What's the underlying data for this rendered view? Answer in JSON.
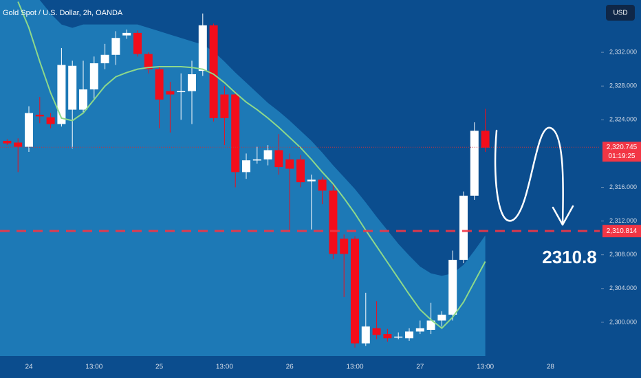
{
  "chart_data": {
    "type": "candlestick",
    "title": "Gold Spot / U.S. Dollar, 2h, OANDA",
    "currency_button": "USD",
    "categories": [
      null,
      null,
      "24",
      null,
      null,
      null,
      null,
      null,
      "13:00",
      null,
      null,
      null,
      null,
      null,
      "25",
      null,
      null,
      null,
      null,
      null,
      "13:00",
      null,
      null,
      null,
      null,
      null,
      "26",
      null,
      null,
      null,
      null,
      null,
      "13:00",
      null,
      null,
      null,
      null,
      null,
      "27",
      null,
      null,
      null,
      null,
      null,
      "13:00",
      null,
      null,
      null,
      null,
      null,
      "28"
    ],
    "open": [
      2321.5,
      2321.3,
      2320.8,
      2324.6,
      2324.3,
      2323.5,
      2325.2,
      2325.2,
      2327.6,
      2330.7,
      2331.7,
      2334.0,
      2334.3,
      2331.8,
      2330.0,
      2327.4,
      2327.3,
      2327.4,
      2329.8,
      2335.2,
      2327.0,
      2327.0,
      2317.8,
      2319.2,
      2319.3,
      2320.4,
      2319.3,
      2319.3,
      2316.7,
      2316.9,
      2315.6,
      2309.9,
      2309.9,
      2297.5,
      2299.3,
      2298.6,
      2298.2,
      2298.1,
      2298.9,
      2299.1,
      2300.2,
      2300.9,
      2307.4,
      2315.0,
      2322.7,
      null,
      null,
      null,
      null,
      null,
      null
    ],
    "high": [
      2321.7,
      2321.8,
      2325.6,
      2326.7,
      2324.8,
      2332.5,
      2331.0,
      2331.0,
      2331.5,
      2333.0,
      2334.5,
      2334.7,
      2334.6,
      2332.0,
      2330.4,
      2328.5,
      2329.5,
      2331.0,
      2336.6,
      2335.4,
      2328.0,
      2327.4,
      2320.0,
      2320.8,
      2321.0,
      2322.3,
      2320.0,
      2319.8,
      2317.5,
      2317.2,
      2316.4,
      2310.4,
      2310.2,
      2303.5,
      2302.5,
      2299.2,
      2298.8,
      2299.3,
      2300.2,
      2302.3,
      2301.3,
      2308.5,
      2315.5,
      2323.7,
      2325.3,
      null,
      null,
      null,
      null,
      null,
      null
    ],
    "low": [
      2321.0,
      2317.8,
      2320.2,
      2323.6,
      2323.0,
      2323.2,
      2320.6,
      2324.8,
      2326.5,
      2330.0,
      2330.5,
      2333.6,
      2331.5,
      2329.5,
      2323.0,
      2322.5,
      2324.0,
      2323.5,
      2329.2,
      2323.8,
      2321.0,
      2316.0,
      2317.0,
      2318.8,
      2318.6,
      2317.5,
      2310.7,
      2316.0,
      2311.0,
      2314.0,
      2307.5,
      2303.0,
      2297.0,
      2297.2,
      2298.0,
      2297.7,
      2298.0,
      2297.8,
      2298.6,
      2298.6,
      2299.5,
      2300.2,
      2307.0,
      2314.5,
      2320.2,
      null,
      null,
      null,
      null,
      null,
      null
    ],
    "close": [
      2321.2,
      2320.8,
      2324.8,
      2324.4,
      2323.5,
      2330.5,
      2330.4,
      2327.6,
      2330.7,
      2331.7,
      2333.7,
      2334.3,
      2331.8,
      2330.0,
      2326.4,
      2327.0,
      2327.4,
      2329.4,
      2335.2,
      2324.2,
      2324.2,
      2317.8,
      2319.2,
      2319.3,
      2320.4,
      2318.4,
      2318.2,
      2316.6,
      2316.9,
      2315.6,
      2308.1,
      2308.1,
      2297.5,
      2299.5,
      2298.5,
      2298.1,
      2298.3,
      2298.9,
      2299.3,
      2300.2,
      2300.9,
      2307.4,
      2315.0,
      2322.7,
      2320.7,
      null,
      null,
      null,
      null,
      null,
      null
    ],
    "up_color": "#ffffff",
    "down_color": "#f20d1b",
    "line": {
      "color": "#8ed98a",
      "values": [
        null,
        2338.0,
        2334.9,
        2330.9,
        2327.2,
        2324.2,
        2323.9,
        2324.8,
        2326.4,
        2328.0,
        2329.1,
        2329.6,
        2330.0,
        2330.2,
        2330.3,
        2330.3,
        2330.3,
        2330.2,
        2330.0,
        2329.4,
        2328.4,
        2327.2,
        2326.1,
        2325.2,
        2324.2,
        2323.1,
        2321.9,
        2320.7,
        2319.3,
        2317.8,
        2316.4,
        2314.7,
        2312.9,
        2310.9,
        2309.0,
        2307.1,
        2305.2,
        2303.3,
        2301.5,
        2300.3,
        2299.3,
        2300.6,
        2302.4,
        2304.8,
        2307.2,
        null,
        null,
        null,
        null,
        null,
        null
      ]
    },
    "band": {
      "color": "#1d79b6",
      "upper": [
        2338.2,
        2338.2,
        2338.2,
        2338.2,
        2336.6,
        2335.3,
        2334.9,
        2335.3,
        2335.3,
        2335.3,
        2335.3,
        2335.3,
        2335.3,
        2334.9,
        2334.5,
        2334.1,
        2333.7,
        2333.3,
        2332.9,
        2332.1,
        2330.9,
        2329.6,
        2328.4,
        2327.2,
        2326.0,
        2325.0,
        2323.9,
        2322.7,
        2321.5,
        2320.1,
        2318.6,
        2317.2,
        2315.8,
        2314.2,
        2312.5,
        2310.9,
        2309.3,
        2307.9,
        2306.6,
        2305.8,
        2305.5,
        2305.8,
        2306.8,
        2308.5,
        2310.3,
        null,
        null,
        null,
        null,
        null,
        null
      ]
    },
    "ylim": [
      2296,
      2338.2
    ],
    "yticks": [
      {
        "value": 2300,
        "label": "2,300.000"
      },
      {
        "value": 2304,
        "label": "2,304.000"
      },
      {
        "value": 2308,
        "label": "2,308.000"
      },
      {
        "value": 2312,
        "label": "2,312.000"
      },
      {
        "value": 2316,
        "label": "2,316.000"
      },
      {
        "value": 2324,
        "label": "2,324.000"
      },
      {
        "value": 2328,
        "label": "2,328.000"
      },
      {
        "value": 2332,
        "label": "2,332.000"
      }
    ],
    "current_price": {
      "value": 2320.745,
      "label": "2,320.745"
    },
    "countdown": "01:19:25",
    "target_line": {
      "value": 2310.814,
      "label": "2,310.814"
    },
    "annotation": "2310.8",
    "background": "#0b4d8e"
  }
}
